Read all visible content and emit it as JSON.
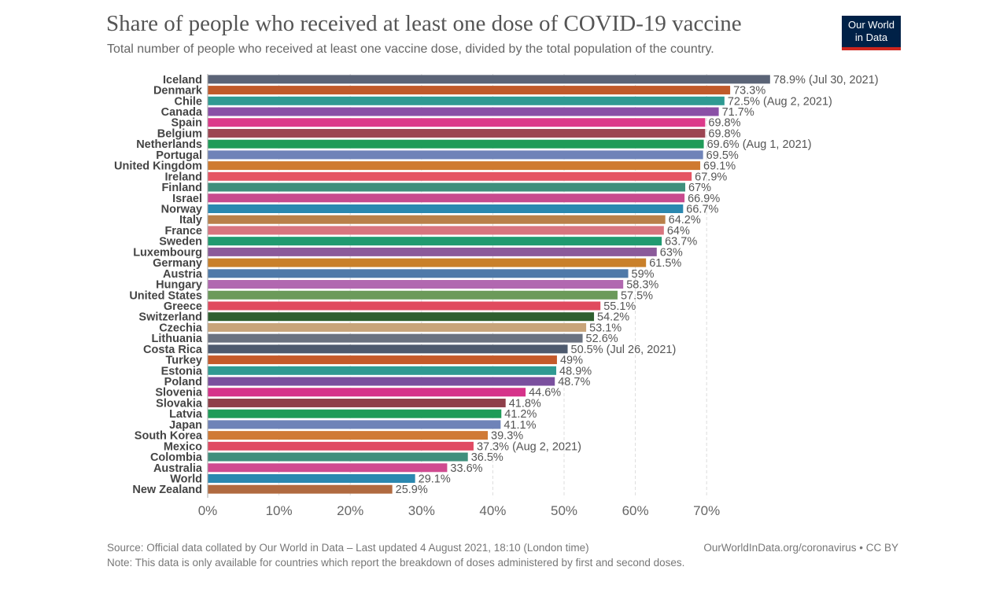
{
  "header": {
    "title": "Share of people who received at least one dose of COVID-19 vaccine",
    "subtitle": "Total number of people who received at least one vaccine dose, divided by the total population of the country."
  },
  "logo": {
    "line1": "Our World",
    "line2": "in Data",
    "background": "#002147",
    "accent": "#ce261e"
  },
  "footer": {
    "source": "Source: Official data collated by Our World in Data – Last updated 4 August 2021, 18:10 (London time)",
    "credit": "OurWorldInData.org/coronavirus • CC BY",
    "note": "Note: This data is only available for countries which report the breakdown of doses administered by first and second doses."
  },
  "chart_data": {
    "type": "bar",
    "orientation": "horizontal",
    "xlim": [
      0,
      80
    ],
    "ticks": [
      0,
      10,
      20,
      30,
      40,
      50,
      60,
      70
    ],
    "tick_labels": [
      "0%",
      "10%",
      "20%",
      "30%",
      "40%",
      "50%",
      "60%",
      "70%"
    ],
    "grid": true,
    "categories": [
      "Iceland",
      "Denmark",
      "Chile",
      "Canada",
      "Spain",
      "Belgium",
      "Netherlands",
      "Portugal",
      "United Kingdom",
      "Ireland",
      "Finland",
      "Israel",
      "Norway",
      "Italy",
      "France",
      "Sweden",
      "Luxembourg",
      "Germany",
      "Austria",
      "Hungary",
      "United States",
      "Greece",
      "Switzerland",
      "Czechia",
      "Lithuania",
      "Costa Rica",
      "Turkey",
      "Estonia",
      "Poland",
      "Slovenia",
      "Slovakia",
      "Latvia",
      "Japan",
      "South Korea",
      "Mexico",
      "Colombia",
      "Australia",
      "World",
      "New Zealand"
    ],
    "values": [
      78.9,
      73.3,
      72.5,
      71.7,
      69.8,
      69.8,
      69.6,
      69.5,
      69.1,
      67.9,
      67,
      66.9,
      66.7,
      64.2,
      64,
      63.7,
      63,
      61.5,
      59,
      58.3,
      57.5,
      55.1,
      54.2,
      53.1,
      52.6,
      50.5,
      49,
      48.9,
      48.7,
      44.6,
      41.8,
      41.2,
      41.1,
      39.3,
      37.3,
      36.5,
      33.6,
      29.1,
      25.9
    ],
    "value_labels": [
      "78.9% (Jul 30, 2021)",
      "73.3%",
      "72.5% (Aug 2, 2021)",
      "71.7%",
      "69.8%",
      "69.8%",
      "69.6% (Aug 1, 2021)",
      "69.5%",
      "69.1%",
      "67.9%",
      "67%",
      "66.9%",
      "66.7%",
      "64.2%",
      "64%",
      "63.7%",
      "63%",
      "61.5%",
      "59%",
      "58.3%",
      "57.5%",
      "55.1%",
      "54.2%",
      "53.1%",
      "52.6%",
      "50.5% (Jul 26, 2021)",
      "49%",
      "48.9%",
      "48.7%",
      "44.6%",
      "41.8%",
      "41.2%",
      "41.1%",
      "39.3%",
      "37.3% (Aug 2, 2021)",
      "36.5%",
      "33.6%",
      "29.1%",
      "25.9%"
    ],
    "colors": [
      "#5b6477",
      "#c05a2a",
      "#2f9a92",
      "#8a4fa6",
      "#dc3a8a",
      "#9c4552",
      "#1f9b58",
      "#6f83b8",
      "#cf7a30",
      "#e55463",
      "#3f8f7c",
      "#c84a8e",
      "#2b88b0",
      "#b9804a",
      "#d8757f",
      "#209a70",
      "#8b5a9a",
      "#c9802a",
      "#4f79a8",
      "#b168b0",
      "#6b9a5a",
      "#e04a5e",
      "#2f5f2f",
      "#c8a47a",
      "#6b7280",
      "#4e5a6e",
      "#c45a2a",
      "#2f9a92",
      "#7a4f9e",
      "#d6338a",
      "#8f3f4a",
      "#1f9b58",
      "#6f83b8",
      "#d07a36",
      "#e04a63",
      "#3f8f7c",
      "#d04a90",
      "#2b88b0",
      "#b06a40"
    ]
  }
}
